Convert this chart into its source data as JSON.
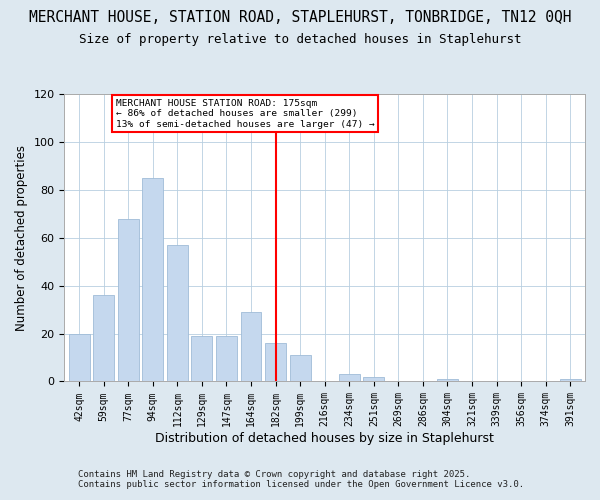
{
  "title": "MERCHANT HOUSE, STATION ROAD, STAPLEHURST, TONBRIDGE, TN12 0QH",
  "subtitle": "Size of property relative to detached houses in Staplehurst",
  "xlabel": "Distribution of detached houses by size in Staplehurst",
  "ylabel": "Number of detached properties",
  "categories": [
    "42sqm",
    "59sqm",
    "77sqm",
    "94sqm",
    "112sqm",
    "129sqm",
    "147sqm",
    "164sqm",
    "182sqm",
    "199sqm",
    "216sqm",
    "234sqm",
    "251sqm",
    "269sqm",
    "286sqm",
    "304sqm",
    "321sqm",
    "339sqm",
    "356sqm",
    "374sqm",
    "391sqm"
  ],
  "values": [
    20,
    36,
    68,
    85,
    57,
    19,
    19,
    29,
    16,
    11,
    0,
    3,
    2,
    0,
    0,
    1,
    0,
    0,
    0,
    0,
    1
  ],
  "bar_color": "#c5d8ee",
  "bar_edge_color": "#a0bcd8",
  "vline_x_index": 8,
  "vline_color": "red",
  "annotation_lines": [
    "MERCHANT HOUSE STATION ROAD: 175sqm",
    "← 86% of detached houses are smaller (299)",
    "13% of semi-detached houses are larger (47) →"
  ],
  "annotation_box_color": "white",
  "annotation_box_edge_color": "red",
  "ylim": [
    0,
    120
  ],
  "yticks": [
    0,
    20,
    40,
    60,
    80,
    100,
    120
  ],
  "footer_line1": "Contains HM Land Registry data © Crown copyright and database right 2025.",
  "footer_line2": "Contains public sector information licensed under the Open Government Licence v3.0.",
  "background_color": "#dde8f0",
  "plot_bg_color": "white",
  "title_fontsize": 10.5,
  "subtitle_fontsize": 9
}
